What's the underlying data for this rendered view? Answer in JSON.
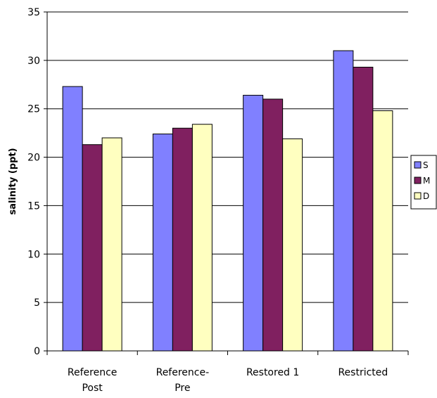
{
  "chart_data": {
    "type": "bar",
    "categories": [
      [
        "Reference",
        "Post"
      ],
      [
        "Reference-",
        "Pre"
      ],
      [
        "Restored 1"
      ],
      [
        "Restricted"
      ]
    ],
    "series": [
      {
        "name": "S",
        "values": [
          27.3,
          22.4,
          26.4,
          31.0
        ],
        "color": "#8080FF"
      },
      {
        "name": "M",
        "values": [
          21.3,
          23.0,
          26.0,
          29.3
        ],
        "color": "#802060"
      },
      {
        "name": "D",
        "values": [
          22.0,
          23.4,
          21.9,
          24.8
        ],
        "color": "#FFFFC0"
      }
    ],
    "title": "",
    "xlabel": "",
    "ylabel": "salinity (ppt)",
    "ylim": [
      0,
      35
    ],
    "yticks": [
      0,
      5,
      10,
      15,
      20,
      25,
      30,
      35
    ],
    "grid": true,
    "legend_position": "right"
  }
}
